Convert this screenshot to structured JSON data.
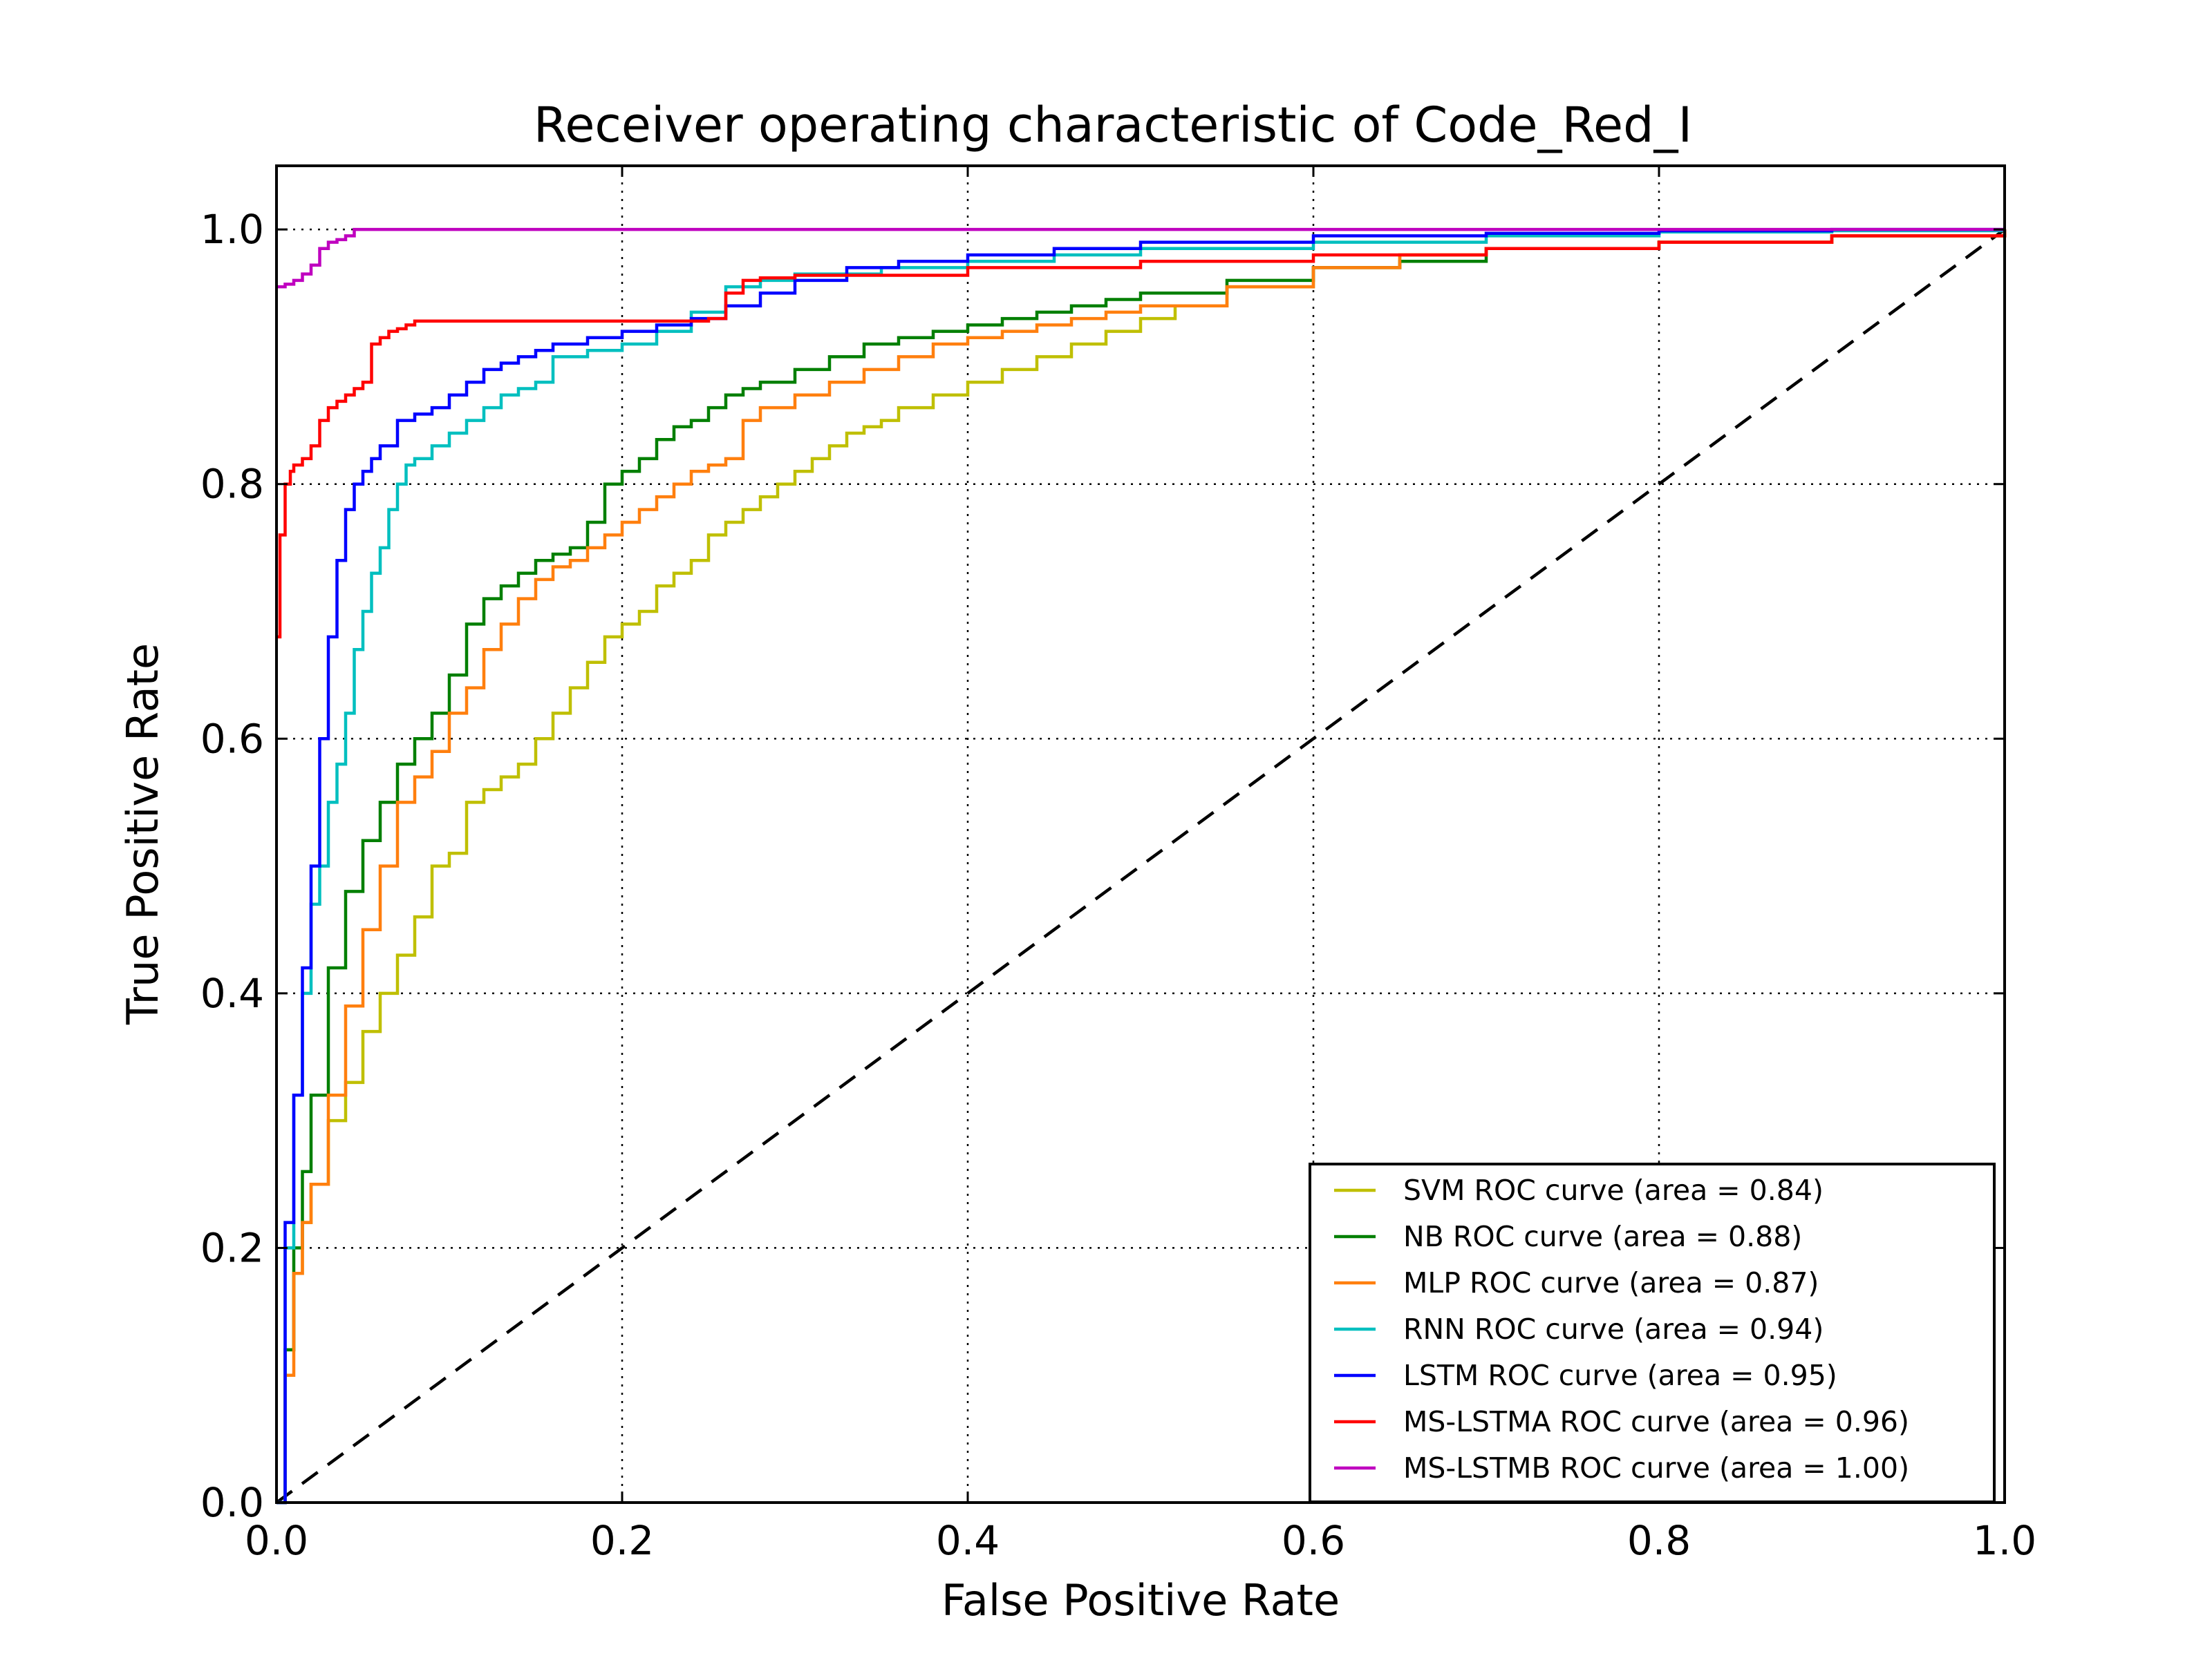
{
  "chart_data": {
    "type": "line",
    "title": "Receiver operating characteristic of Code_Red_I",
    "xlabel": "False Positive Rate",
    "ylabel": "True Positive Rate",
    "xlim": [
      0.0,
      1.0
    ],
    "ylim": [
      0.0,
      1.05
    ],
    "x_ticks": [
      0.0,
      0.2,
      0.4,
      0.6,
      0.8,
      1.0
    ],
    "y_ticks": [
      0.0,
      0.2,
      0.4,
      0.6,
      0.8,
      1.0
    ],
    "x_tick_labels": [
      "0.0",
      "0.2",
      "0.4",
      "0.6",
      "0.8",
      "1.0"
    ],
    "y_tick_labels": [
      "0.0",
      "0.2",
      "0.4",
      "0.6",
      "0.8",
      "1.0"
    ],
    "grid": true,
    "legend_position": "lower-right",
    "series": [
      {
        "name": "SVM ROC curve (area = 0.84)",
        "color": "#bfbf00",
        "x": [
          0,
          0.005,
          0.01,
          0.015,
          0.02,
          0.03,
          0.04,
          0.05,
          0.06,
          0.07,
          0.08,
          0.09,
          0.1,
          0.11,
          0.12,
          0.13,
          0.14,
          0.15,
          0.16,
          0.17,
          0.18,
          0.19,
          0.2,
          0.21,
          0.22,
          0.23,
          0.24,
          0.25,
          0.26,
          0.27,
          0.28,
          0.29,
          0.3,
          0.31,
          0.32,
          0.33,
          0.34,
          0.35,
          0.36,
          0.38,
          0.4,
          0.42,
          0.44,
          0.46,
          0.48,
          0.5,
          0.52,
          0.55,
          0.6,
          0.65,
          0.7,
          0.8,
          0.9,
          1.0
        ],
        "y": [
          0,
          0.12,
          0.18,
          0.22,
          0.25,
          0.3,
          0.33,
          0.37,
          0.4,
          0.43,
          0.46,
          0.5,
          0.51,
          0.55,
          0.56,
          0.57,
          0.58,
          0.6,
          0.62,
          0.64,
          0.66,
          0.68,
          0.69,
          0.7,
          0.72,
          0.73,
          0.74,
          0.76,
          0.77,
          0.78,
          0.79,
          0.8,
          0.81,
          0.82,
          0.83,
          0.84,
          0.845,
          0.85,
          0.86,
          0.87,
          0.88,
          0.89,
          0.9,
          0.91,
          0.92,
          0.93,
          0.94,
          0.955,
          0.97,
          0.98,
          0.985,
          0.99,
          0.995,
          1.0
        ]
      },
      {
        "name": "NB ROC curve (area = 0.88)",
        "color": "#007f00",
        "x": [
          0,
          0.005,
          0.01,
          0.015,
          0.02,
          0.03,
          0.04,
          0.05,
          0.06,
          0.07,
          0.08,
          0.09,
          0.1,
          0.11,
          0.12,
          0.13,
          0.14,
          0.15,
          0.16,
          0.17,
          0.18,
          0.19,
          0.2,
          0.21,
          0.22,
          0.23,
          0.24,
          0.25,
          0.26,
          0.27,
          0.28,
          0.3,
          0.32,
          0.34,
          0.36,
          0.38,
          0.4,
          0.42,
          0.44,
          0.46,
          0.48,
          0.5,
          0.55,
          0.6,
          0.65,
          0.7,
          0.8,
          0.9,
          1.0
        ],
        "y": [
          0,
          0.12,
          0.2,
          0.26,
          0.32,
          0.42,
          0.48,
          0.52,
          0.55,
          0.58,
          0.6,
          0.62,
          0.65,
          0.69,
          0.71,
          0.72,
          0.73,
          0.74,
          0.745,
          0.75,
          0.77,
          0.8,
          0.81,
          0.82,
          0.835,
          0.845,
          0.85,
          0.86,
          0.87,
          0.875,
          0.88,
          0.89,
          0.9,
          0.91,
          0.915,
          0.92,
          0.925,
          0.93,
          0.935,
          0.94,
          0.945,
          0.95,
          0.96,
          0.97,
          0.975,
          0.985,
          0.99,
          0.995,
          1.0
        ]
      },
      {
        "name": "MLP ROC curve (area = 0.87)",
        "color": "#ff7f0e",
        "x": [
          0,
          0.005,
          0.01,
          0.015,
          0.02,
          0.03,
          0.04,
          0.05,
          0.06,
          0.07,
          0.08,
          0.09,
          0.1,
          0.11,
          0.12,
          0.13,
          0.14,
          0.15,
          0.16,
          0.17,
          0.18,
          0.19,
          0.2,
          0.21,
          0.22,
          0.23,
          0.24,
          0.25,
          0.26,
          0.27,
          0.28,
          0.3,
          0.32,
          0.34,
          0.36,
          0.38,
          0.4,
          0.42,
          0.44,
          0.46,
          0.48,
          0.5,
          0.55,
          0.6,
          0.65,
          0.7,
          0.8,
          0.9,
          1.0
        ],
        "y": [
          0,
          0.1,
          0.18,
          0.22,
          0.25,
          0.32,
          0.39,
          0.45,
          0.5,
          0.55,
          0.57,
          0.59,
          0.62,
          0.64,
          0.67,
          0.69,
          0.71,
          0.725,
          0.735,
          0.74,
          0.75,
          0.76,
          0.77,
          0.78,
          0.79,
          0.8,
          0.81,
          0.815,
          0.82,
          0.85,
          0.86,
          0.87,
          0.88,
          0.89,
          0.9,
          0.91,
          0.915,
          0.92,
          0.925,
          0.93,
          0.935,
          0.94,
          0.955,
          0.97,
          0.98,
          0.985,
          0.99,
          0.995,
          1.0
        ]
      },
      {
        "name": "RNN ROC curve (area = 0.94)",
        "color": "#00bfbf",
        "x": [
          0,
          0.005,
          0.01,
          0.015,
          0.02,
          0.025,
          0.03,
          0.035,
          0.04,
          0.045,
          0.05,
          0.055,
          0.06,
          0.065,
          0.07,
          0.075,
          0.08,
          0.09,
          0.1,
          0.11,
          0.12,
          0.13,
          0.14,
          0.15,
          0.16,
          0.18,
          0.2,
          0.22,
          0.24,
          0.26,
          0.28,
          0.3,
          0.35,
          0.4,
          0.45,
          0.5,
          0.6,
          0.7,
          0.8,
          0.9,
          1.0
        ],
        "y": [
          0,
          0.2,
          0.32,
          0.4,
          0.47,
          0.5,
          0.55,
          0.58,
          0.62,
          0.67,
          0.7,
          0.73,
          0.75,
          0.78,
          0.8,
          0.815,
          0.82,
          0.83,
          0.84,
          0.85,
          0.86,
          0.87,
          0.875,
          0.88,
          0.9,
          0.905,
          0.91,
          0.92,
          0.935,
          0.955,
          0.96,
          0.965,
          0.97,
          0.975,
          0.98,
          0.985,
          0.99,
          0.995,
          0.998,
          0.999,
          1.0
        ]
      },
      {
        "name": "LSTM ROC curve (area = 0.95)",
        "color": "#0000ff",
        "x": [
          0,
          0.005,
          0.01,
          0.015,
          0.02,
          0.025,
          0.03,
          0.035,
          0.04,
          0.045,
          0.05,
          0.055,
          0.06,
          0.07,
          0.08,
          0.09,
          0.1,
          0.11,
          0.12,
          0.13,
          0.14,
          0.15,
          0.16,
          0.18,
          0.2,
          0.22,
          0.24,
          0.26,
          0.28,
          0.3,
          0.33,
          0.36,
          0.4,
          0.45,
          0.5,
          0.6,
          0.7,
          0.8,
          0.9,
          1.0
        ],
        "y": [
          0,
          0.22,
          0.32,
          0.42,
          0.5,
          0.6,
          0.68,
          0.74,
          0.78,
          0.8,
          0.81,
          0.82,
          0.83,
          0.85,
          0.855,
          0.86,
          0.87,
          0.88,
          0.89,
          0.895,
          0.9,
          0.905,
          0.91,
          0.915,
          0.92,
          0.925,
          0.93,
          0.94,
          0.95,
          0.96,
          0.97,
          0.975,
          0.98,
          0.985,
          0.99,
          0.995,
          0.997,
          0.999,
          1.0,
          1.0
        ]
      },
      {
        "name": "MS-LSTMA ROC curve (area = 0.96)",
        "color": "#ff0000",
        "x": [
          0,
          0.002,
          0.005,
          0.008,
          0.01,
          0.015,
          0.02,
          0.025,
          0.03,
          0.035,
          0.04,
          0.045,
          0.05,
          0.055,
          0.06,
          0.065,
          0.07,
          0.075,
          0.08,
          0.1,
          0.15,
          0.2,
          0.25,
          0.26,
          0.27,
          0.28,
          0.3,
          0.4,
          0.5,
          0.6,
          0.7,
          0.8,
          0.9,
          1.0
        ],
        "y": [
          0.68,
          0.76,
          0.8,
          0.81,
          0.815,
          0.82,
          0.83,
          0.85,
          0.86,
          0.865,
          0.87,
          0.875,
          0.88,
          0.91,
          0.915,
          0.92,
          0.922,
          0.925,
          0.928,
          0.928,
          0.928,
          0.928,
          0.93,
          0.95,
          0.96,
          0.962,
          0.964,
          0.97,
          0.975,
          0.98,
          0.985,
          0.99,
          0.995,
          1.0
        ]
      },
      {
        "name": "MS-LSTMB ROC curve (area = 1.00)",
        "color": "#bf00bf",
        "x": [
          0,
          0.005,
          0.01,
          0.015,
          0.02,
          0.025,
          0.03,
          0.035,
          0.04,
          0.045,
          0.05,
          0.1,
          0.2,
          0.4,
          0.6,
          0.8,
          1.0
        ],
        "y": [
          0.955,
          0.957,
          0.96,
          0.965,
          0.972,
          0.985,
          0.99,
          0.992,
          0.995,
          1.0,
          1.0,
          1.0,
          1.0,
          1.0,
          1.0,
          1.0,
          1.0
        ]
      },
      {
        "name": "",
        "color": "#000000",
        "dashed": true,
        "x": [
          0,
          1
        ],
        "y": [
          0,
          1
        ]
      }
    ]
  }
}
